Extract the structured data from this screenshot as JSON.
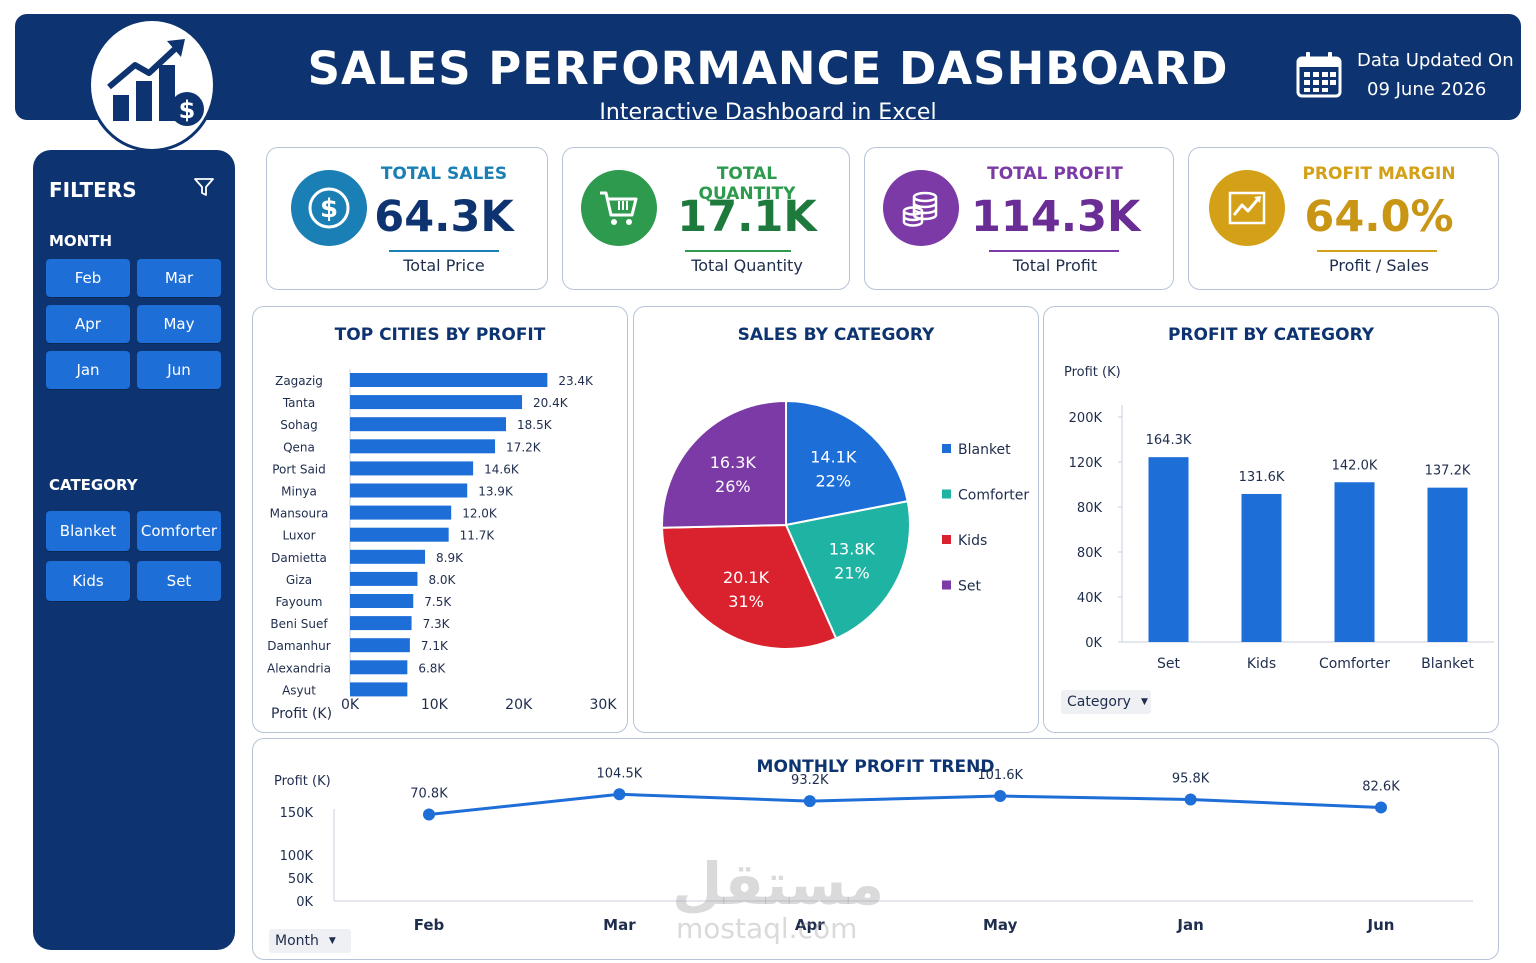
{
  "header": {
    "title": "SALES PERFORMANCE DASHBOARD",
    "subtitle": "Interactive Dashboard in Excel",
    "updated_label": "Data Updated On",
    "updated_value": "09 June 2026"
  },
  "sidebar": {
    "title": "FILTERS",
    "month_label": "MONTH",
    "months": [
      "Feb",
      "Mar",
      "Apr",
      "May",
      "Jan",
      "Jun"
    ],
    "category_label": "CATEGORY",
    "categories": [
      "Blanket",
      "Comforter",
      "Kids",
      "Set"
    ]
  },
  "kpis": [
    {
      "title": "TOTAL SALES",
      "value": "64.3K",
      "sub": "Total Price",
      "color": "#1a7fb5",
      "value_color": "#0d3470"
    },
    {
      "title": "TOTAL QUANTITY",
      "value": "17.1K",
      "sub": "Total Quantity",
      "color": "#2e9a4e",
      "value_color": "#1e7a3c"
    },
    {
      "title": "TOTAL PROFIT",
      "value": "114.3K",
      "sub": "Total Profit",
      "color": "#7b3aa6",
      "value_color": "#6a2d95"
    },
    {
      "title": "PROFIT MARGIN",
      "value": "64.0%",
      "sub": "Profit / Sales",
      "color": "#d4a017",
      "value_color": "#c99515"
    }
  ],
  "panels": {
    "cities_title": "TOP CITIES BY PROFIT",
    "category_sales_title": "SALES BY CATEGORY",
    "category_profit_title": "PROFIT BY CATEGORY",
    "monthly_title": "MONTHLY PROFIT TREND",
    "category_dropdown": "Category",
    "month_dropdown": "Month"
  },
  "watermark": {
    "arabic": "مستقل",
    "latin": "mostaql.com"
  },
  "chart_data": [
    {
      "type": "bar",
      "orientation": "horizontal",
      "title": "TOP CITIES BY PROFIT",
      "xlabel": "Profit (K)",
      "categories": [
        "Zagazig",
        "Tanta",
        "Sohag",
        "Qena",
        "Port Said",
        "Minya",
        "Mansoura",
        "Luxor",
        "Damietta",
        "Giza",
        "Fayoum",
        "Beni Suef",
        "Damanhur",
        "Alexandria",
        "Asyut"
      ],
      "values": [
        23.4,
        20.4,
        18.5,
        17.2,
        14.6,
        13.9,
        12.0,
        11.7,
        8.9,
        8.0,
        7.5,
        7.3,
        7.1,
        6.8,
        6.8
      ],
      "labels": [
        "23.4K",
        "20.4K",
        "18.5K",
        "17.2K",
        "14.6K",
        "13.9K",
        "12.0K",
        "11.7K",
        "8.9K",
        "8.0K",
        "7.5K",
        "7.3K",
        "7.1K",
        "6.8K",
        ""
      ],
      "xlim": [
        0,
        30
      ],
      "xticks": [
        "0K",
        "10K",
        "20K",
        "30K"
      ],
      "color": "#1e6ed8"
    },
    {
      "type": "pie",
      "title": "SALES BY CATEGORY",
      "slices": [
        {
          "name": "Blanket",
          "value": 14.1,
          "label": "14.1K",
          "pct": "22%",
          "color": "#1e6ed8"
        },
        {
          "name": "Comforter",
          "value": 13.8,
          "label": "13.8K",
          "pct": "21%",
          "color": "#1fb3a3"
        },
        {
          "name": "Kids",
          "value": 20.1,
          "label": "20.1K",
          "pct": "31%",
          "color": "#d9222e"
        },
        {
          "name": "Set",
          "value": 16.3,
          "label": "16.3K",
          "pct": "26%",
          "color": "#7b3aa6"
        }
      ],
      "legend": "right"
    },
    {
      "type": "bar",
      "title": "PROFIT BY CATEGORY",
      "ylabel": "Profit (K)",
      "categories": [
        "Set",
        "Kids",
        "Comforter",
        "Blanket"
      ],
      "values": [
        164.3,
        131.6,
        142.0,
        137.2
      ],
      "labels": [
        "164.3K",
        "131.6K",
        "142.0K",
        "137.2K"
      ],
      "yticks": [
        "200K",
        "120K",
        "80K",
        "80K",
        "40K",
        "0K"
      ],
      "ylim": [
        0,
        200
      ],
      "color": "#1e6ed8"
    },
    {
      "type": "line",
      "title": "MONTHLY PROFIT TREND",
      "ylabel": "Profit (K)",
      "x": [
        "Feb",
        "Mar",
        "Apr",
        "May",
        "Jan",
        "Jun"
      ],
      "values": [
        70.8,
        104.5,
        93.2,
        101.6,
        95.8,
        82.6
      ],
      "labels": [
        "70.8K",
        "104.5K",
        "93.2K",
        "101.6K",
        "95.8K",
        "82.6K"
      ],
      "yticks": [
        "150K",
        "100K",
        "50K",
        "0K"
      ],
      "color": "#1e6ed8"
    }
  ]
}
